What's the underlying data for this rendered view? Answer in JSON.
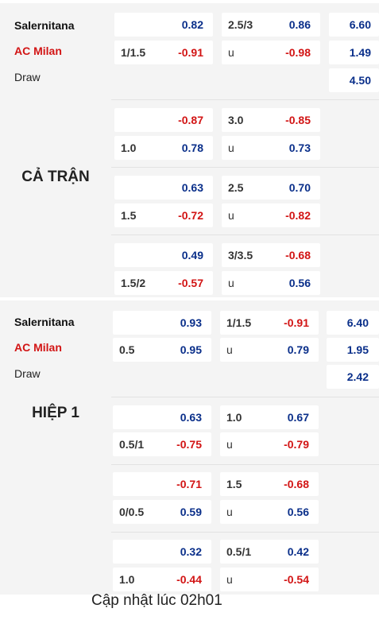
{
  "sections": [
    {
      "teams": {
        "home": "Salernitana",
        "away": "AC Milan",
        "draw": "Draw"
      },
      "period": "CẢ TRẬN",
      "groups": [
        {
          "handicap": {
            "top": {
              "line": "",
              "value": "0.82"
            },
            "bottom": {
              "line": "1/1.5",
              "value": "-0.91"
            }
          },
          "overunder": {
            "top": {
              "line": "2.5/3",
              "value": "0.86"
            },
            "bottom": {
              "line": "u",
              "value": "-0.98"
            }
          },
          "odds_1x2": [
            "6.60",
            "1.49",
            "4.50"
          ]
        },
        {
          "handicap": {
            "top": {
              "line": "",
              "value": "-0.87"
            },
            "bottom": {
              "line": "1.0",
              "value": "0.78"
            }
          },
          "overunder": {
            "top": {
              "line": "3.0",
              "value": "-0.85"
            },
            "bottom": {
              "line": "u",
              "value": "0.73"
            }
          }
        },
        {
          "handicap": {
            "top": {
              "line": "",
              "value": "0.63"
            },
            "bottom": {
              "line": "1.5",
              "value": "-0.72"
            }
          },
          "overunder": {
            "top": {
              "line": "2.5",
              "value": "0.70"
            },
            "bottom": {
              "line": "u",
              "value": "-0.82"
            }
          }
        },
        {
          "handicap": {
            "top": {
              "line": "",
              "value": "0.49"
            },
            "bottom": {
              "line": "1.5/2",
              "value": "-0.57"
            }
          },
          "overunder": {
            "top": {
              "line": "3/3.5",
              "value": "-0.68"
            },
            "bottom": {
              "line": "u",
              "value": "0.56"
            }
          }
        }
      ]
    },
    {
      "teams": {
        "home": "Salernitana",
        "away": "AC Milan",
        "draw": "Draw"
      },
      "period": "HIỆP 1",
      "groups": [
        {
          "handicap": {
            "top": {
              "line": "",
              "value": "0.93"
            },
            "bottom": {
              "line": "0.5",
              "value": "0.95"
            }
          },
          "overunder": {
            "top": {
              "line": "1/1.5",
              "value": "-0.91"
            },
            "bottom": {
              "line": "u",
              "value": "0.79"
            }
          },
          "odds_1x2": [
            "6.40",
            "1.95",
            "2.42"
          ]
        },
        {
          "handicap": {
            "top": {
              "line": "",
              "value": "0.63"
            },
            "bottom": {
              "line": "0.5/1",
              "value": "-0.75"
            }
          },
          "overunder": {
            "top": {
              "line": "1.0",
              "value": "0.67"
            },
            "bottom": {
              "line": "u",
              "value": "-0.79"
            }
          }
        },
        {
          "handicap": {
            "top": {
              "line": "",
              "value": "-0.71"
            },
            "bottom": {
              "line": "0/0.5",
              "value": "0.59"
            }
          },
          "overunder": {
            "top": {
              "line": "1.5",
              "value": "-0.68"
            },
            "bottom": {
              "line": "u",
              "value": "0.56"
            }
          }
        },
        {
          "handicap": {
            "top": {
              "line": "",
              "value": "0.32"
            },
            "bottom": {
              "line": "1.0",
              "value": "-0.44"
            }
          },
          "overunder": {
            "top": {
              "line": "0.5/1",
              "value": "0.42"
            },
            "bottom": {
              "line": "u",
              "value": "-0.54"
            }
          }
        }
      ]
    }
  ],
  "footer": "Cập nhật lúc 02h01",
  "colors": {
    "positive": "#0a2f8a",
    "negative": "#d21414",
    "panel": "#f4f4f4",
    "cell": "#ffffff"
  }
}
